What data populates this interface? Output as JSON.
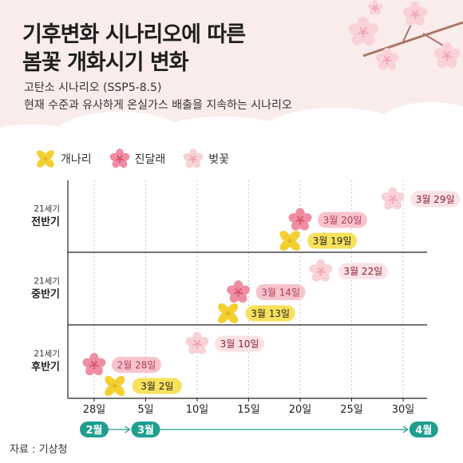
{
  "title_line1": "기후변화 시나리오에 따른",
  "title_line2": "봄꽃 개화시기 변화",
  "subtitle_line1": "고탄소 시나리오 (SSP5-8.5)",
  "subtitle_line2": "현재 수준과 유사하게 온실가스 배출을 지속하는 시나리오",
  "source": "자료 : 기상청",
  "colors": {
    "forsythia": "#f3d030",
    "azalea": "#ef8da2",
    "cherry": "#f8d2d6",
    "forsythia_label_bg": "#f8e15c",
    "azalea_label_bg": "#f7c4cc",
    "cherry_label_bg": "#fbe2e5",
    "teal": "#1f9e8f",
    "header_bg": "#fbecec"
  },
  "chart_data": {
    "type": "scatter",
    "title": "기후변화 시나리오에 따른 봄꽃 개화시기 변화",
    "x_axis": {
      "unit": "date",
      "min": "02-25",
      "max": "04-02",
      "ticks": [
        {
          "date": "02-28",
          "label": "28일"
        },
        {
          "date": "03-05",
          "label": "5일"
        },
        {
          "date": "03-10",
          "label": "10일"
        },
        {
          "date": "03-15",
          "label": "15일"
        },
        {
          "date": "03-20",
          "label": "20일"
        },
        {
          "date": "03-25",
          "label": "25일"
        },
        {
          "date": "03-30",
          "label": "30일"
        }
      ],
      "months": [
        {
          "label": "2월",
          "date": "02-28"
        },
        {
          "label": "3월",
          "date": "03-05"
        },
        {
          "label": "4월",
          "date": "04-01"
        }
      ]
    },
    "grid": true,
    "legend_position": "top-left",
    "periods": [
      {
        "line1": "21세기",
        "line2": "전반기"
      },
      {
        "line1": "21세기",
        "line2": "중반기"
      },
      {
        "line1": "21세기",
        "line2": "후반기"
      }
    ],
    "series": [
      {
        "name": "개나리",
        "icon": "forsythia-flower-icon",
        "dates": [
          "03-19",
          "03-13",
          "03-02"
        ],
        "labels": [
          "3월 19일",
          "3월 13일",
          "3월 2일"
        ]
      },
      {
        "name": "진달래",
        "icon": "azalea-flower-icon",
        "dates": [
          "03-20",
          "03-14",
          "02-28"
        ],
        "labels": [
          "3월 20일",
          "3월 14일",
          "2월 28일"
        ]
      },
      {
        "name": "벚꽃",
        "icon": "cherry-blossom-icon",
        "dates": [
          "03-29",
          "03-22",
          "03-10"
        ],
        "labels": [
          "3월 29일",
          "3월 22일",
          "3월 10일"
        ]
      }
    ]
  }
}
